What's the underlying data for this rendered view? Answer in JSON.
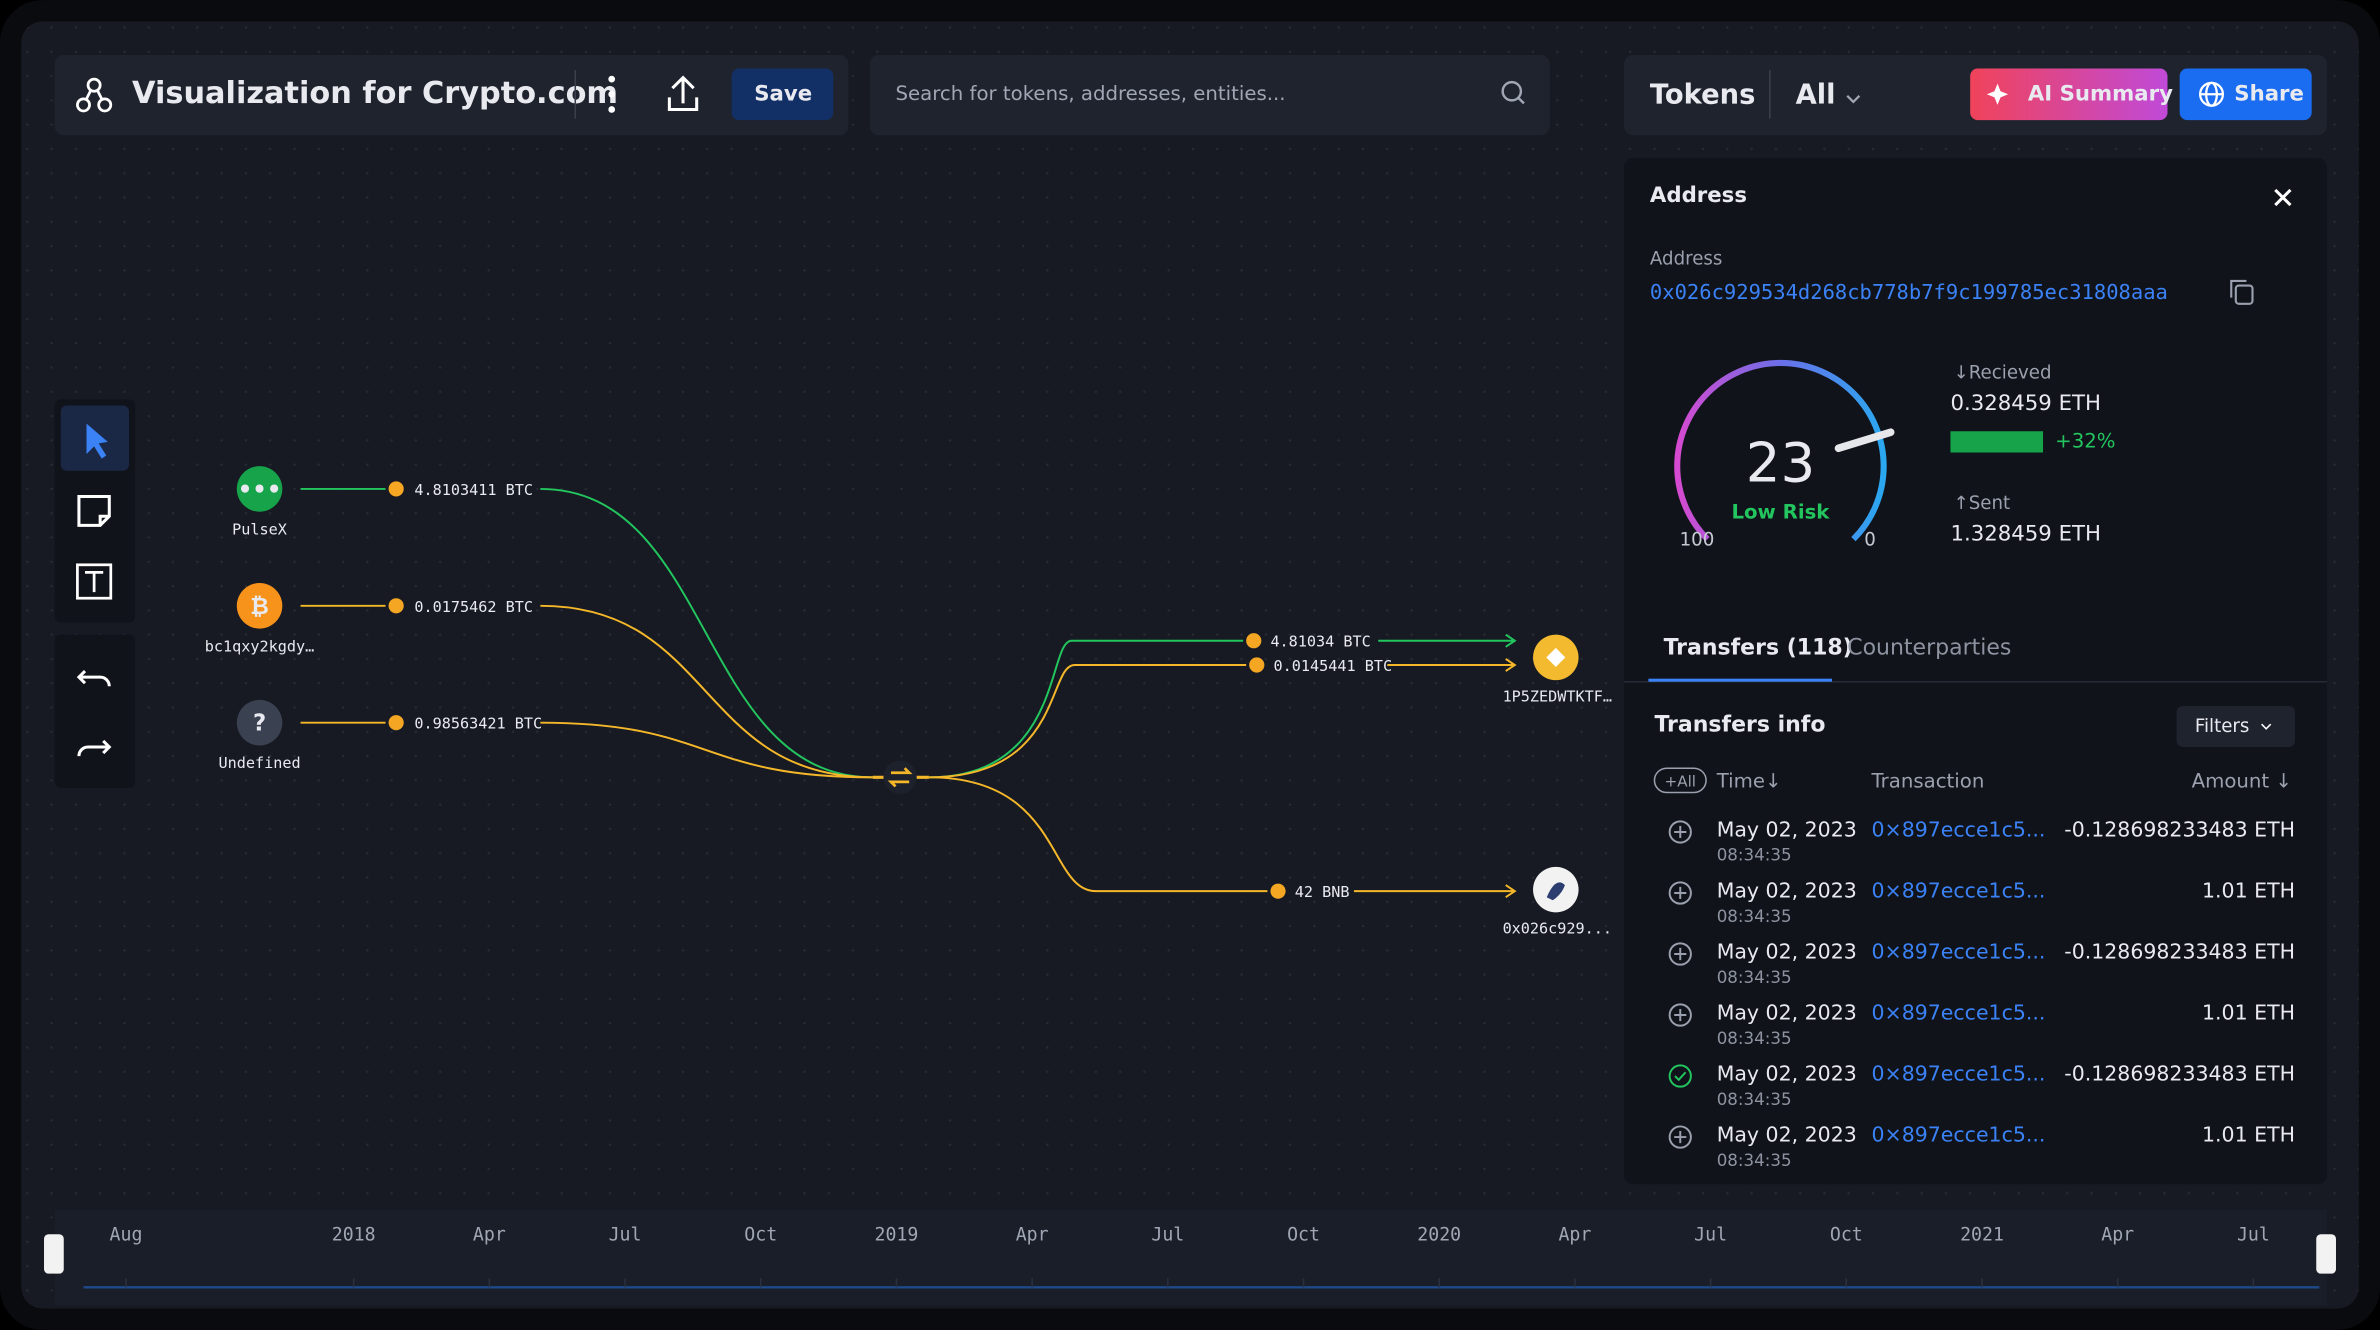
{
  "header": {
    "title": "Visualization for Crypto.com",
    "save": "Save",
    "search_placeholder": "Search for tokens, addresses, entities...",
    "tokens": "Tokens",
    "token_filter": "All",
    "ai_summary": "AI Summary",
    "share": "Share"
  },
  "address_panel": {
    "title": "Address",
    "address_label": "Address",
    "address": "0x026c929534d268cb778b7f9c199785ec31808aaa",
    "risk_score": 23,
    "risk_label": "Low Risk",
    "gauge_scale": [
      100,
      0
    ],
    "received_label": "↓Recieved",
    "received": "0.328459 ETH",
    "received_change": "+32%",
    "sent_label": "↑Sent",
    "sent": "1.328459 ETH"
  },
  "transfers": {
    "tabs": [
      "Transfers (118)",
      "Counterparties"
    ],
    "title": "Transfers info",
    "filters": "Filters",
    "columns": [
      "+All",
      "Time↓",
      "Transaction",
      "Amount ↓"
    ],
    "rows": [
      {
        "date": "May 02, 2023",
        "time": "08:34:35",
        "tx": "0×897ecce1c5...",
        "amount": "-0.128698233483 ETH",
        "checked": false
      },
      {
        "date": "May 02, 2023",
        "time": "08:34:35",
        "tx": "0×897ecce1c5...",
        "amount": "1.01 ETH",
        "checked": false
      },
      {
        "date": "May 02, 2023",
        "time": "08:34:35",
        "tx": "0×897ecce1c5...",
        "amount": "-0.128698233483 ETH",
        "checked": false
      },
      {
        "date": "May 02, 2023",
        "time": "08:34:35",
        "tx": "0×897ecce1c5...",
        "amount": "1.01 ETH",
        "checked": false
      },
      {
        "date": "May 02, 2023",
        "time": "08:34:35",
        "tx": "0×897ecce1c5...",
        "amount": "-0.128698233483 ETH",
        "checked": true
      },
      {
        "date": "May 02, 2023",
        "time": "08:34:35",
        "tx": "0×897ecce1c5...",
        "amount": "1.01 ETH",
        "checked": false
      }
    ]
  },
  "graph": {
    "sources": [
      {
        "label": "PulseX",
        "amount": "4.8103411 BTC"
      },
      {
        "label": "bc1qxy2kgdy…",
        "amount": "0.0175462 BTC"
      },
      {
        "label": "Undefined",
        "amount": "0.98563421 BTC"
      }
    ],
    "targets": [
      {
        "label": "1P5ZEDWTKTF…",
        "amounts": [
          "4.81034 BTC",
          "0.0145441 BTC"
        ]
      },
      {
        "label": "0x026c929...",
        "amounts": [
          "42 BNB"
        ]
      }
    ]
  },
  "timeline": [
    "Aug",
    "2018",
    "Apr",
    "Jul",
    "Oct",
    "2019",
    "Apr",
    "Jul",
    "Oct",
    "2020",
    "Apr",
    "Jul",
    "Oct",
    "2021",
    "Apr",
    "Jul"
  ]
}
